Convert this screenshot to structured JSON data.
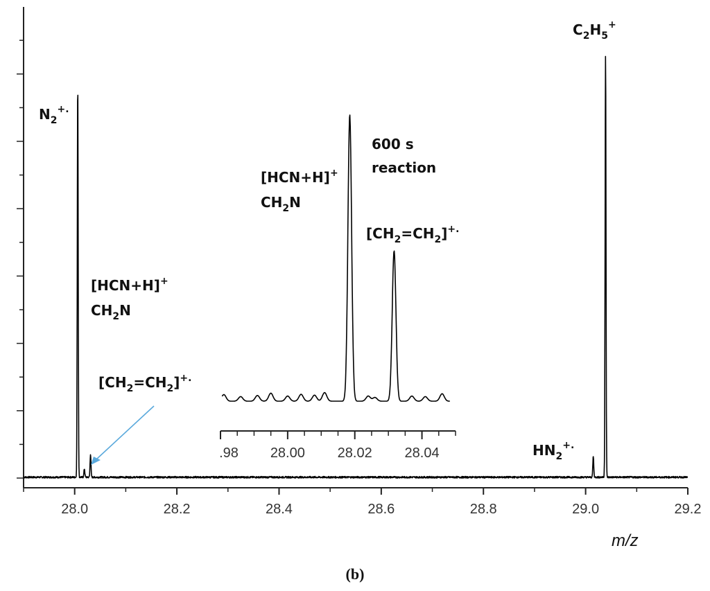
{
  "chart_data": [
    {
      "type": "line",
      "title": "",
      "xlabel": "m/z",
      "ylabel": "",
      "xlim": [
        27.9,
        29.2
      ],
      "ylim": [
        0,
        1
      ],
      "xticks": [
        "28.0",
        "28.2",
        "28.4",
        "28.6",
        "28.8",
        "29.0",
        "29.2"
      ],
      "peaks": [
        {
          "x": 28.006,
          "y": 0.93,
          "label": "N2+."
        },
        {
          "x": 28.019,
          "y": 0.02,
          "label": "[HCN+H]+ CH2N"
        },
        {
          "x": 28.031,
          "y": 0.055,
          "label": "[CH2=CH2]+."
        },
        {
          "x": 29.015,
          "y": 0.05,
          "label": "HN2+."
        },
        {
          "x": 29.039,
          "y": 1.0,
          "label": "C2H5+"
        }
      ]
    },
    {
      "type": "line",
      "title": "600 s reaction",
      "xlim": [
        27.98,
        28.05
      ],
      "ylim": [
        0,
        1
      ],
      "xticks": [
        ".98",
        "28.00",
        "28.02",
        "28.04"
      ],
      "peaks": [
        {
          "x": 28.0185,
          "y": 1.0,
          "label": "[HCN+H]+ CH2N"
        },
        {
          "x": 28.0317,
          "y": 0.525,
          "label": "[CH2=CH2]+."
        }
      ],
      "baseline_wiggles": [
        {
          "x": 27.981,
          "y": 0.035
        },
        {
          "x": 27.986,
          "y": 0.028
        },
        {
          "x": 27.991,
          "y": 0.032
        },
        {
          "x": 27.995,
          "y": 0.04
        },
        {
          "x": 28.0,
          "y": 0.03
        },
        {
          "x": 28.004,
          "y": 0.036
        },
        {
          "x": 28.008,
          "y": 0.033
        },
        {
          "x": 28.011,
          "y": 0.042
        },
        {
          "x": 28.024,
          "y": 0.03
        },
        {
          "x": 28.026,
          "y": 0.025
        },
        {
          "x": 28.037,
          "y": 0.03
        },
        {
          "x": 28.041,
          "y": 0.028
        },
        {
          "x": 28.046,
          "y": 0.038
        }
      ]
    }
  ],
  "annotations": {
    "n2": {
      "main": "N",
      "sub": "2",
      "sup": "+."
    },
    "hcn_main": {
      "line1": "[HCN+H]",
      "sup": "+",
      "line2a": "CH",
      "line2sub": "2",
      "line2b": "N"
    },
    "ch2_main": {
      "a": "[CH",
      "sub1": "2",
      "b": "=CH",
      "sub2": "2",
      "c": "]",
      "sup": "+."
    },
    "hn2": {
      "main": "HN",
      "sub": "2",
      "sup": "+."
    },
    "c2h5": {
      "c": "C",
      "sub1": "2",
      "h": "H",
      "sub2": "5",
      "sup": "+"
    },
    "inset_time": {
      "line1": "600 s",
      "line2": "reaction"
    },
    "hcn_inset": {
      "line1": "[HCN+H]",
      "sup": "+",
      "line2a": "CH",
      "line2sub": "2",
      "line2b": "N"
    },
    "ch2_inset": {
      "a": "[CH",
      "sub1": "2",
      "b": "=CH",
      "sub2": "2",
      "c": "]",
      "sup": "+."
    }
  },
  "arrow_color": "#5aa9dc",
  "caption": {
    "open": "(",
    "letter": "b",
    "close": ")"
  }
}
